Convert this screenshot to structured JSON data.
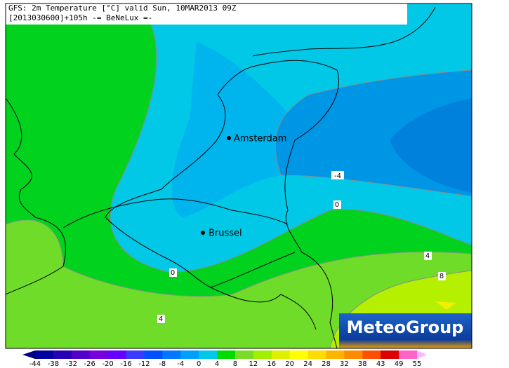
{
  "header": {
    "title": "GFS: 2m Temperature [°C] valid Sun, 10MAR2013 09Z",
    "subtitle": "[2013030600]+105h -= BeNeLux =-"
  },
  "cities": [
    {
      "label": "Amsterdam"
    },
    {
      "label": "Brussel"
    }
  ],
  "contour_labels": [
    "-4",
    "0",
    "0",
    "4",
    "4",
    "8"
  ],
  "logo": "MeteoGroup",
  "colorbar": {
    "labels": [
      "-44",
      "-38",
      "-32",
      "-26",
      "-20",
      "-16",
      "-12",
      "-8",
      "-4",
      "0",
      "4",
      "8",
      "12",
      "16",
      "20",
      "24",
      "28",
      "32",
      "38",
      "43",
      "49",
      "55"
    ],
    "colors": [
      "#000082",
      "#0000a0",
      "#2800b4",
      "#5000c8",
      "#7800dc",
      "#6400ff",
      "#3c3cff",
      "#0050ff",
      "#0078ff",
      "#00a0ff",
      "#00c8e6",
      "#00dc00",
      "#78dc28",
      "#a0f000",
      "#dcf000",
      "#ffff00",
      "#ffdc00",
      "#ffb400",
      "#ff8c00",
      "#ff5000",
      "#dc0000",
      "#ff64c8",
      "#ffb4ff"
    ]
  }
}
